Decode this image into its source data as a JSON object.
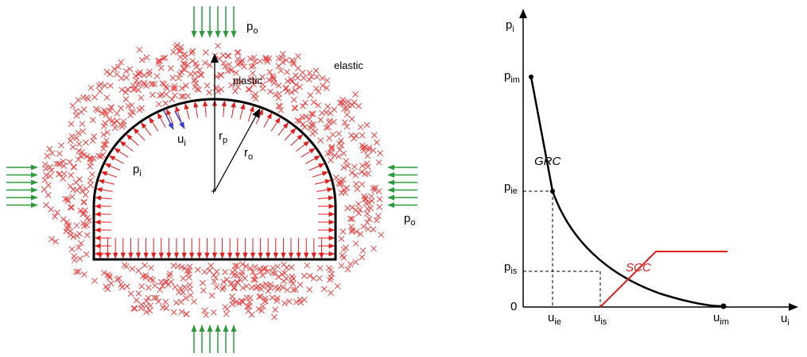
{
  "tunnel": {
    "labels": {
      "po_top": "p",
      "po_top_sub": "o",
      "po_right": "p",
      "po_right_sub": "o",
      "elastic": "elastic",
      "plastic": "plastic",
      "ui": "u",
      "ui_sub": "i",
      "pi": "p",
      "pi_sub": "i",
      "rp": "r",
      "rp_sub": "p",
      "ro": "r",
      "ro_sub": "o"
    },
    "colors": {
      "plastic_marks": "#ee4444",
      "support_pressure": "#e21b1b",
      "far_field_pressure": "#2a9a3a",
      "displacement": "#3a3acc",
      "lining": "#000000"
    }
  },
  "chart": {
    "y_axis": {
      "label": "p",
      "label_sub": "i"
    },
    "x_axis": {
      "label": "u",
      "label_sub": "i"
    },
    "y_ticks": [
      {
        "key": "pim",
        "text": "p",
        "sub": "im"
      },
      {
        "key": "pie",
        "text": "p",
        "sub": "ie"
      },
      {
        "key": "pis",
        "text": "p",
        "sub": "is"
      },
      {
        "key": "zero",
        "text": "0",
        "sub": ""
      }
    ],
    "x_ticks": [
      {
        "key": "uie",
        "text": "u",
        "sub": "ie"
      },
      {
        "key": "uis",
        "text": "u",
        "sub": "is"
      },
      {
        "key": "uim",
        "text": "u",
        "sub": "im"
      }
    ],
    "curves": {
      "grc": {
        "label": "GRC",
        "color": "#000000"
      },
      "scc": {
        "label": "SCC",
        "color": "#e21b1b"
      }
    }
  }
}
